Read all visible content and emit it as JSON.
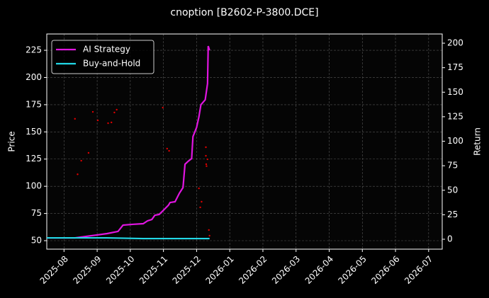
{
  "chart_data": {
    "type": "line",
    "title": "cnoption [B2602-P-3800.DCE]",
    "ylabel": "Price",
    "y2label": "Return",
    "background": "#000000",
    "grid": true,
    "legend": "upper left",
    "xlim": [
      -0.52,
      11.41
    ],
    "xticks": [
      {
        "value": 0,
        "label": "2025-08"
      },
      {
        "value": 1,
        "label": "2025-09"
      },
      {
        "value": 2,
        "label": "2025-10"
      },
      {
        "value": 3,
        "label": "2025-11"
      },
      {
        "value": 4,
        "label": "2025-12"
      },
      {
        "value": 5,
        "label": "2026-01"
      },
      {
        "value": 6,
        "label": "2026-02"
      },
      {
        "value": 7,
        "label": "2026-03"
      },
      {
        "value": 8,
        "label": "2026-04"
      },
      {
        "value": 9,
        "label": "2026-05"
      },
      {
        "value": 10,
        "label": "2026-06"
      },
      {
        "value": 11,
        "label": "2026-07"
      }
    ],
    "ylim": [
      42.2,
      240
    ],
    "yticks": [
      50,
      75,
      100,
      125,
      150,
      175,
      200,
      225
    ],
    "y2lim": [
      -10.1,
      209.4
    ],
    "y2ticks": [
      0,
      25,
      50,
      75,
      100,
      125,
      150,
      175,
      200
    ],
    "series": [
      {
        "name": "AI Strategy",
        "color": "#e015e0",
        "axis": "y2",
        "x": [
          -0.52,
          0.33,
          0.98,
          1.3,
          1.63,
          1.78,
          2.07,
          2.39,
          2.52,
          2.65,
          2.74,
          2.87,
          3.0,
          3.15,
          3.2,
          3.35,
          3.48,
          3.59,
          3.65,
          3.74,
          3.85,
          3.89,
          4.0,
          4.07,
          4.13,
          4.26,
          4.33,
          4.35,
          4.39
        ],
        "values": [
          1.4,
          1.4,
          4.3,
          5.8,
          8.0,
          14.4,
          15.2,
          15.9,
          18.8,
          20.2,
          24.5,
          25.3,
          29.6,
          34.7,
          37.5,
          38.3,
          46.9,
          52.7,
          76.5,
          79.4,
          82.3,
          104.7,
          114.1,
          124.9,
          137.2,
          142.3,
          158.8,
          197.1,
          192.8
        ]
      },
      {
        "name": "Buy-and-Hold",
        "color": "#22d8e6",
        "axis": "y2",
        "x": [
          -0.52,
          1.3,
          2.39,
          3.48,
          4.39
        ],
        "values": [
          1.4,
          1.4,
          0.7,
          0.7,
          0.7
        ]
      }
    ],
    "scatter": {
      "color": "#e00000",
      "axis": "y",
      "x": [
        0.33,
        0.41,
        0.52,
        0.74,
        0.87,
        1.02,
        1.33,
        1.43,
        1.52,
        1.59,
        2.98,
        3.11,
        3.17,
        4.07,
        4.11,
        4.15,
        4.28,
        4.28,
        4.29,
        4.3,
        4.33,
        4.37,
        4.39
      ],
      "values": [
        162,
        111,
        123.5,
        130.7,
        168.4,
        160.6,
        158,
        158.7,
        167.8,
        170.4,
        172.3,
        134.6,
        132.6,
        98.1,
        80.6,
        85.8,
        135.9,
        128,
        120.3,
        118.5,
        124.8,
        59.8,
        54.6
      ]
    }
  }
}
